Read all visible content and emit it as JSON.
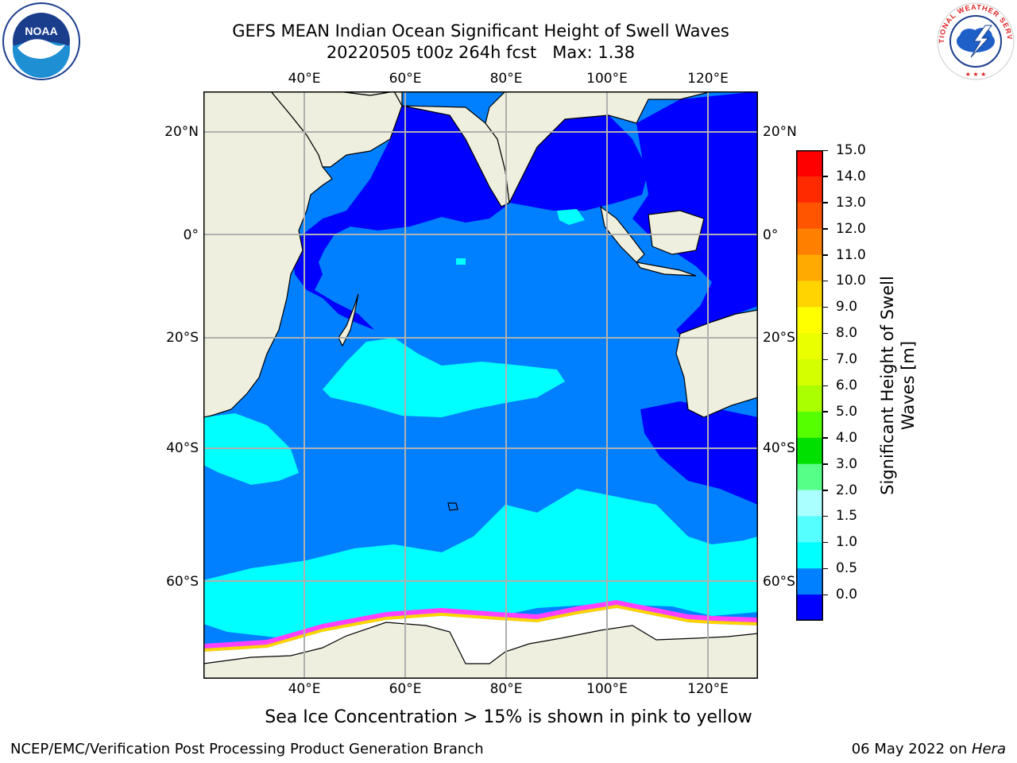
{
  "title": {
    "line1": "GEFS MEAN Indian Ocean Significant Height of Swell Waves",
    "line2": "20220505 t00z 264h fcst   Max: 1.38"
  },
  "map": {
    "lon_labels": [
      "40°E",
      "60°E",
      "80°E",
      "100°E",
      "120°E"
    ],
    "lat_labels": [
      "20°N",
      "0°",
      "20°S",
      "40°S",
      "60°S"
    ],
    "extent": {
      "lon_min": 20,
      "lon_max": 130,
      "lat_min": -75,
      "lat_max": 28
    }
  },
  "colorbar": {
    "title_line1": "Significant Height of Swell",
    "title_line2": "Waves [m]",
    "tick_labels": [
      "15.0",
      "14.0",
      "13.0",
      "12.0",
      "11.0",
      "10.0",
      "9.0",
      "8.0",
      "7.0",
      "6.0",
      "5.0",
      "4.0",
      "3.0",
      "2.0",
      "1.5",
      "1.0",
      "0.5",
      "0.0"
    ],
    "colors_top_to_bottom": [
      "#ff0000",
      "#ff2a00",
      "#ff5500",
      "#ff7f00",
      "#ffaa00",
      "#ffd400",
      "#ffff00",
      "#eaff00",
      "#d4ff00",
      "#aaff00",
      "#55ff00",
      "#00e000",
      "#55ff88",
      "#aaffff",
      "#55ffff",
      "#00ffff",
      "#0080ff",
      "#0000ff"
    ]
  },
  "footer": {
    "note": "Sea Ice Concentration > 15% is shown in pink to yellow",
    "credit_left": "NCEP/EMC/Verification Post Processing Product Generation Branch",
    "date": "06 May 2022 on ",
    "machine": "Hera"
  },
  "logos": {
    "noaa_text": "NOAA",
    "nws_text": "NATIONAL WEATHER SERVICE"
  },
  "colors": {
    "land": "#efefdf",
    "ice": "#ffffff",
    "swell_low": "#0000ff",
    "swell_mid": "#0080ff",
    "swell_high": "#00ffff",
    "grid": "#b0b0b0"
  }
}
